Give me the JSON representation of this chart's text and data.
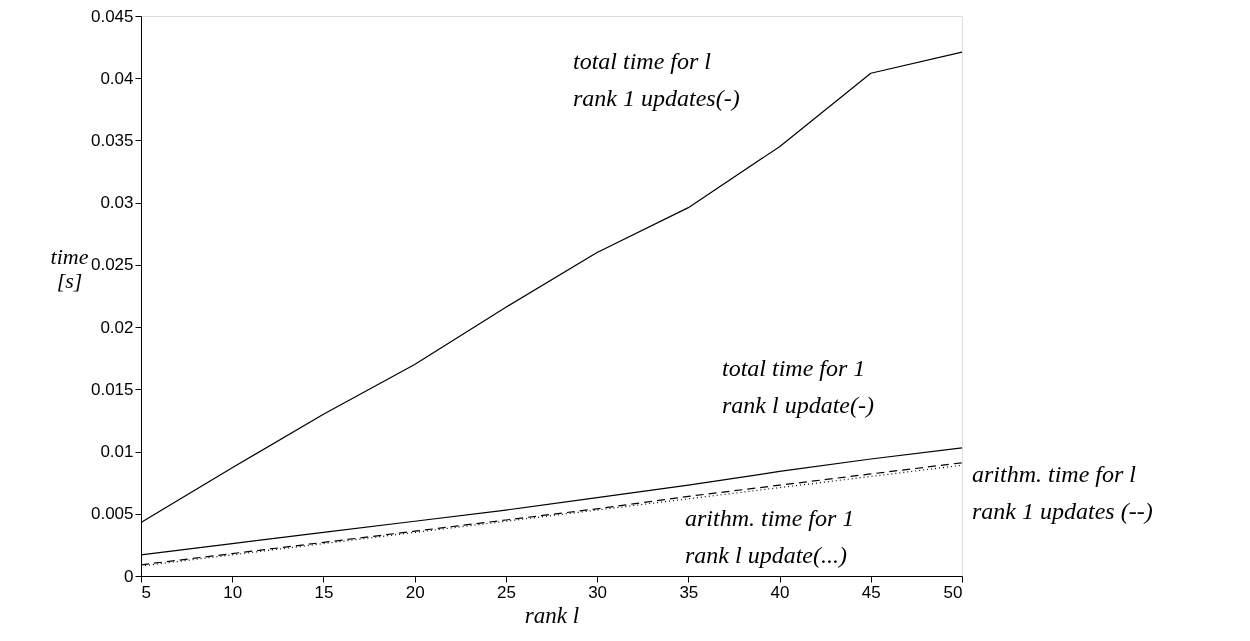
{
  "chart_data": {
    "type": "line",
    "xlabel": "rank l",
    "ylabel": "time\n[s]",
    "x": [
      5,
      10,
      15,
      20,
      25,
      30,
      35,
      40,
      45,
      50
    ],
    "series": [
      {
        "color": "#000000",
        "line_style": "solid",
        "values": [
          0.0043,
          0.0087,
          0.013,
          0.017,
          0.0216,
          0.026,
          0.0296,
          0.0345,
          0.0404,
          0.0421
        ]
      },
      {
        "color": "#000000",
        "line_style": "solid",
        "values": [
          0.0017,
          0.0026,
          0.0035,
          0.0044,
          0.0053,
          0.0063,
          0.0073,
          0.0084,
          0.0094,
          0.0103
        ]
      },
      {
        "color": "#000000",
        "line_style": "dashed",
        "values": [
          0.0009,
          0.0018,
          0.0027,
          0.0036,
          0.0045,
          0.0054,
          0.0064,
          0.0073,
          0.0082,
          0.0091
        ]
      },
      {
        "color": "#000000",
        "line_style": "dotted",
        "values": [
          0.0008,
          0.0017,
          0.0026,
          0.0035,
          0.0044,
          0.0053,
          0.0062,
          0.0071,
          0.008,
          0.0089
        ]
      }
    ],
    "annotations": [
      "total time for l\nrank 1 updates(-)",
      "total time for 1\nrank l update(-)",
      "arithm. time for l\nrank 1 updates (--)",
      "arithm. time for 1\nrank l update(...)"
    ],
    "xlim": [
      5,
      50
    ],
    "xticks": [
      5,
      10,
      15,
      20,
      25,
      30,
      35,
      40,
      45,
      50
    ],
    "ylim": [
      0,
      0.045
    ],
    "yticks": [
      0,
      0.005,
      0.01,
      0.015,
      0.02,
      0.025,
      0.03,
      0.035,
      0.04,
      0.045
    ],
    "grid": false,
    "marker": "none"
  }
}
